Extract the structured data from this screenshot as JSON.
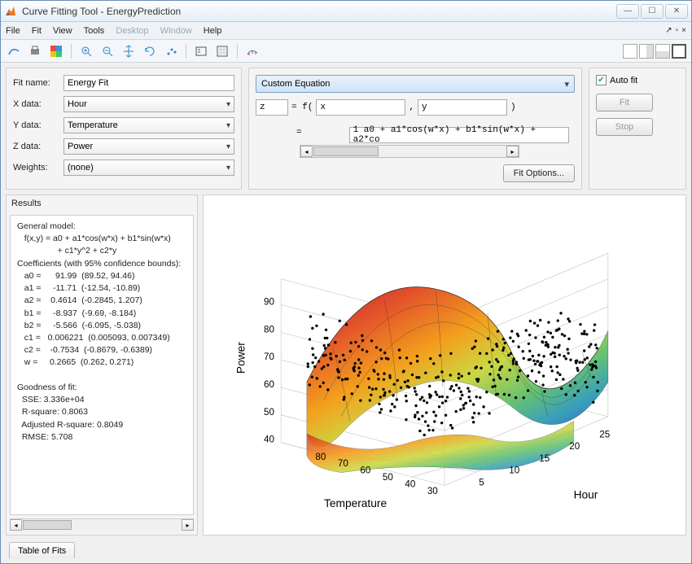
{
  "window": {
    "title": "Curve Fitting Tool - EnergyPrediction"
  },
  "menus": {
    "file": "File",
    "fit": "Fit",
    "view": "View",
    "tools": "Tools",
    "desktop": "Desktop",
    "window": "Window",
    "help": "Help"
  },
  "config": {
    "fitname_label": "Fit name:",
    "fitname": "Energy Fit",
    "xlabel": "X data:",
    "xval": "Hour",
    "ylabel": "Y data:",
    "yval": "Temperature",
    "zlabel": "Z data:",
    "zval": "Power",
    "wlabel": "Weights:",
    "wval": "(none)"
  },
  "equation": {
    "type": "Custom Equation",
    "zvar": "z",
    "eq_text": "= f(",
    "xvar": "x",
    "comma": ",",
    "yvar": "y",
    "close": ")",
    "expr": "1 a0 + a1*cos(w*x) + b1*sin(w*x) + a2*co"
  },
  "buttons": {
    "fit_options": "Fit Options...",
    "autofit": "Auto fit",
    "fit": "Fit",
    "stop": "Stop"
  },
  "results_title": "Results",
  "results_text": "General model:\n   f(x,y) = a0 + a1*cos(w*x) + b1*sin(w*x)\n                 + c1*y^2 + c2*y\nCoefficients (with 95% confidence bounds):\n   a0 =      91.99  (89.52, 94.46)\n   a1 =     -11.71  (-12.54, -10.89)\n   a2 =    0.4614  (-0.2845, 1.207)\n   b1 =     -8.937  (-9.69, -8.184)\n   b2 =     -5.566  (-6.095, -5.038)\n   c1 =   0.006221  (0.005093, 0.007349)\n   c2 =    -0.7534  (-0.8679, -0.6389)\n   w =     0.2665  (0.262, 0.271)\n\nGoodness of fit:\n  SSE: 3.336e+04\n  R-square: 0.8063\n  Adjusted R-square: 0.8049\n  RMSE: 5.708\n",
  "tab": "Table of Fits",
  "plot": {
    "zlabel": "Power",
    "xlabel": "Hour",
    "ylabel": "Temperature",
    "zticks": [
      "40",
      "50",
      "60",
      "70",
      "80",
      "90"
    ],
    "yticks": [
      "30",
      "40",
      "50",
      "60",
      "70",
      "80"
    ],
    "xticks": [
      "5",
      "10",
      "15",
      "20",
      "25"
    ],
    "surface_colors": [
      "#b9132a",
      "#e24b1f",
      "#f39c12",
      "#c9d63a",
      "#5fbf6b",
      "#2e9ab8",
      "#3b5fb8",
      "#6a3fb0",
      "#b83fa0"
    ],
    "scatter_color": "#000000",
    "background": "#ffffff",
    "grid_color": "#bbbbbb"
  }
}
